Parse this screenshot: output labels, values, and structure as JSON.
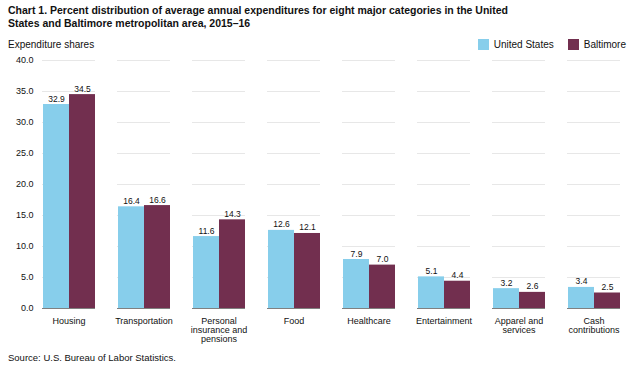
{
  "chart_data": {
    "type": "bar",
    "title": "Chart 1. Percent distribution of average annual expenditures for eight major categories in the United\nStates and Baltimore metropolitan area, 2015–16",
    "ylabel": "Expenditure shares",
    "source": "Source: U.S. Bureau of Labor Statistics.",
    "categories": [
      "Housing",
      "Transportation",
      "Personal\ninsurance and\npensions",
      "Food",
      "Healthcare",
      "Entertainment",
      "Apparel and\nservices",
      "Cash\ncontributions"
    ],
    "series": [
      {
        "name": "United States",
        "color": "#87CEEB",
        "values": [
          32.9,
          16.4,
          11.6,
          12.6,
          7.9,
          5.1,
          3.2,
          3.4
        ],
        "value_labels": [
          "32.9",
          "16.4",
          "11.6",
          "12.6",
          "7.9",
          "5.1",
          "3.2",
          "3.4"
        ]
      },
      {
        "name": "Baltimore",
        "color": "#722F4F",
        "values": [
          34.5,
          16.6,
          14.3,
          12.1,
          7.0,
          4.4,
          2.6,
          2.5
        ],
        "value_labels": [
          "34.5",
          "16.6",
          "14.3",
          "12.1",
          "7.0",
          "4.4",
          "2.6",
          "2.5"
        ]
      }
    ],
    "ylim": [
      0,
      40
    ],
    "yticks": [
      {
        "value": 0,
        "label": "0.0"
      },
      {
        "value": 5,
        "label": "5.0"
      },
      {
        "value": 10,
        "label": "10.0"
      },
      {
        "value": 15,
        "label": "15.0"
      },
      {
        "value": 20,
        "label": "20.0"
      },
      {
        "value": 25,
        "label": "25.0"
      },
      {
        "value": 30,
        "label": "30.0"
      },
      {
        "value": 35,
        "label": "35.0"
      },
      {
        "value": 40,
        "label": "40.0"
      }
    ],
    "grid": true,
    "legend": "upper right",
    "data_labels": true
  }
}
